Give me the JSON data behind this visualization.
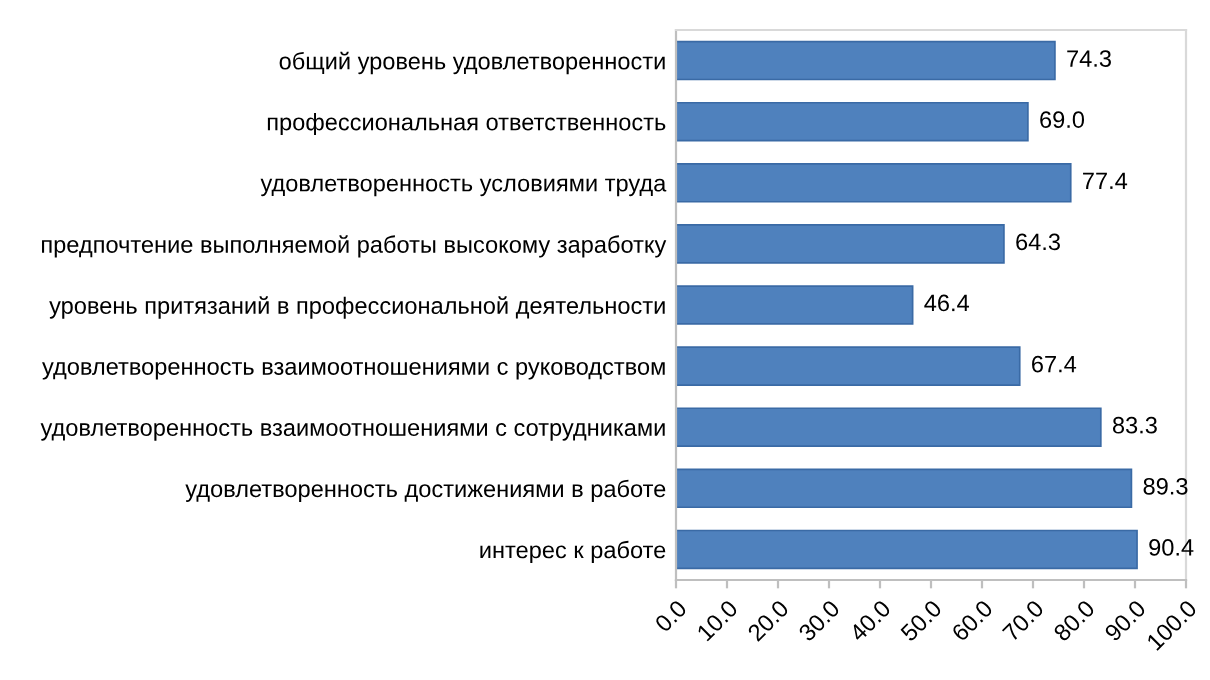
{
  "chart_data": {
    "type": "bar",
    "orientation": "horizontal",
    "categories": [
      "общий уровень удовлетворенности",
      "профессиональная ответственность",
      "удовлетворенность условиями труда",
      "предпочтение выполняемой работы высокому заработку",
      "уровень притязаний в профессиональной деятельности",
      "удовлетворенность взаимоотношениями с руководством",
      "удовлетворенность взаимоотношениями с сотрудниками",
      "удовлетворенность достижениями в работе",
      "интерес к работе"
    ],
    "values": [
      74.3,
      69.0,
      77.4,
      64.3,
      46.4,
      67.4,
      83.3,
      89.3,
      90.4
    ],
    "value_labels": [
      "74.3",
      "69.0",
      "77.4",
      "64.3",
      "46.4",
      "67.4",
      "83.3",
      "89.3",
      "90.4"
    ],
    "color": "#4f81bd",
    "xlim": [
      0,
      100
    ],
    "xticks": [
      {
        "value": 0,
        "label": "0.0"
      },
      {
        "value": 10,
        "label": "10.0"
      },
      {
        "value": 20,
        "label": "20.0"
      },
      {
        "value": 30,
        "label": "30.0"
      },
      {
        "value": 40,
        "label": "40.0"
      },
      {
        "value": 50,
        "label": "50.0"
      },
      {
        "value": 60,
        "label": "60.0"
      },
      {
        "value": 70,
        "label": "70.0"
      },
      {
        "value": 80,
        "label": "80.0"
      },
      {
        "value": 90,
        "label": "90.0"
      },
      {
        "value": 100,
        "label": "100.0"
      }
    ],
    "grid": false,
    "legend": false
  }
}
